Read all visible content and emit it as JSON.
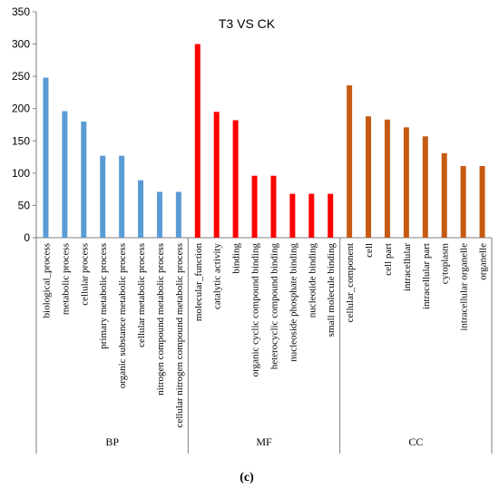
{
  "chart_data": {
    "type": "bar",
    "title": "T3 VS CK",
    "ylim": [
      0,
      350
    ],
    "yticks": [
      0,
      50,
      100,
      150,
      200,
      250,
      300,
      350
    ],
    "grid": false,
    "groups": [
      {
        "name": "BP",
        "color": "#5b9bd5",
        "categories": [
          "biological_process",
          "metabolic process",
          "cellular process",
          "primary metabolic process",
          "organic substance metabolic process",
          "cellular metabolic process",
          "nitrogen compound metabolic process",
          "cellular nitrogen compound metabolic process"
        ],
        "values": [
          248,
          196,
          180,
          127,
          127,
          89,
          71,
          71
        ]
      },
      {
        "name": "MF",
        "color": "#ff0000",
        "categories": [
          "molecular_function",
          "catalytic activity",
          "binding",
          "organic cyclic compound binding",
          "heterocyclic compound binding",
          "nucleoside phosphate binding",
          "nucleotide binding",
          "small molecule binding"
        ],
        "values": [
          300,
          195,
          182,
          96,
          96,
          68,
          68,
          68
        ]
      },
      {
        "name": "CC",
        "color": "#c55a11",
        "categories": [
          "cellular_component",
          "cell",
          "cell part",
          "intracellular",
          "intracellular part",
          "cytoplasm",
          "intracellular organelle",
          "organelle"
        ],
        "values": [
          236,
          188,
          183,
          171,
          157,
          131,
          111,
          111
        ]
      }
    ]
  },
  "caption": "(c)"
}
